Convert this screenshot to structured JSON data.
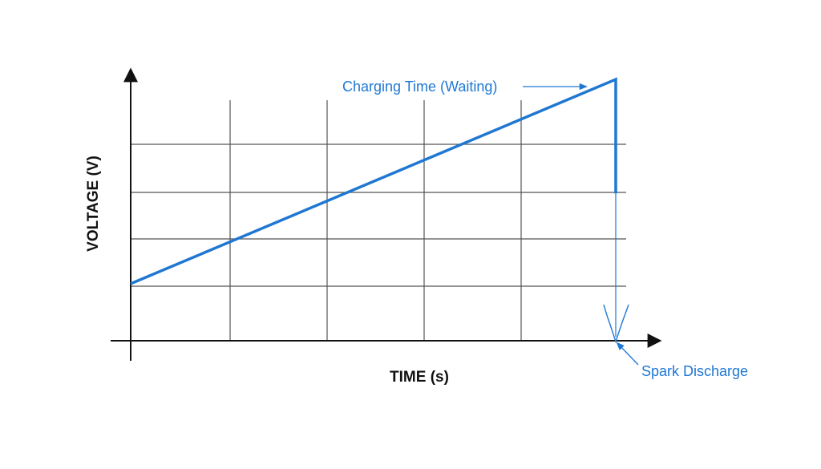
{
  "chart_data": {
    "type": "line",
    "title": "",
    "xlabel": "TIME (s)",
    "ylabel": "VOLTAGE (V)",
    "xlim": [
      0,
      5.1
    ],
    "ylim": [
      0,
      5.5
    ],
    "grid": true,
    "series": [
      {
        "color": "#1f77d2",
        "points": [
          {
            "x": 0,
            "y": 1.2
          },
          {
            "x": 5.0,
            "y": 5.5
          },
          {
            "x": 5.0,
            "y": 3.1
          }
        ]
      }
    ],
    "annotations": [
      {
        "text": "Charging Time (Waiting)",
        "points_to": {
          "x": 5.0,
          "y": 5.5
        },
        "color": "#1f77d2"
      },
      {
        "text": "Spark Discharge",
        "points_to": {
          "x": 5.0,
          "y": 0
        },
        "color": "#1f77d2"
      }
    ]
  }
}
